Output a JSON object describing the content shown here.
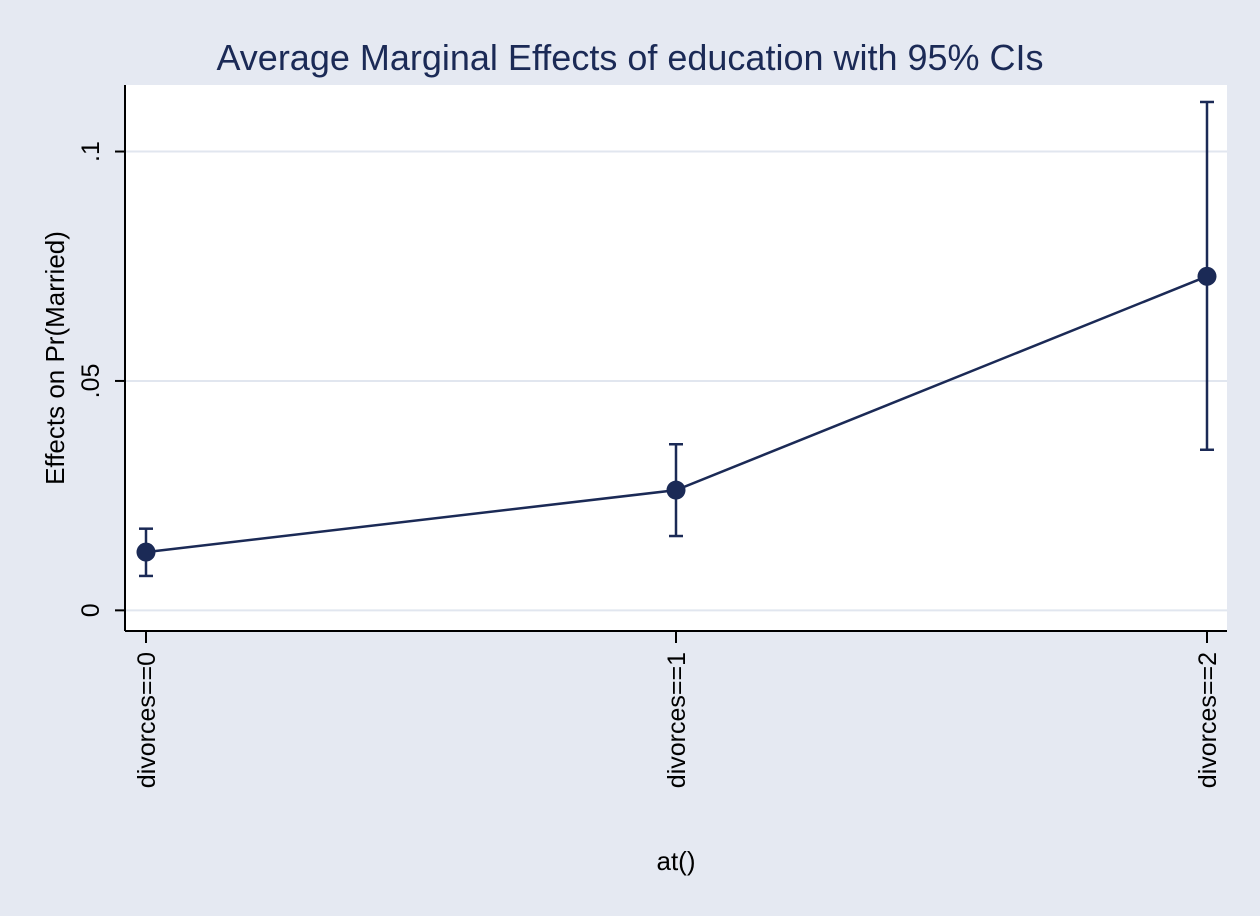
{
  "chart_data": {
    "type": "line",
    "title": "Average Marginal Effects of education with 95% CIs",
    "xlabel": "at()",
    "ylabel": "Effects on Pr(Married)",
    "categories": [
      "divorces==0",
      "divorces==1",
      "divorces==2"
    ],
    "series": [
      {
        "values": [
          0.0127,
          0.0262,
          0.0728
        ],
        "ci_lower": [
          0.0075,
          0.0162,
          0.035
        ],
        "ci_upper": [
          0.0178,
          0.0362,
          0.1108
        ]
      }
    ],
    "ylim": [
      -0.0045,
      0.1145
    ],
    "yticks": [
      {
        "value": 0,
        "label": "0"
      },
      {
        "value": 0.05,
        "label": ".05"
      },
      {
        "value": 0.1,
        "label": ".1"
      }
    ],
    "grid": true,
    "colors": {
      "background": "#e5e9f2",
      "plot_area": "#ffffff",
      "series": "#1b2a56",
      "grid": "#e1e6ef",
      "axis": "#000000"
    }
  }
}
